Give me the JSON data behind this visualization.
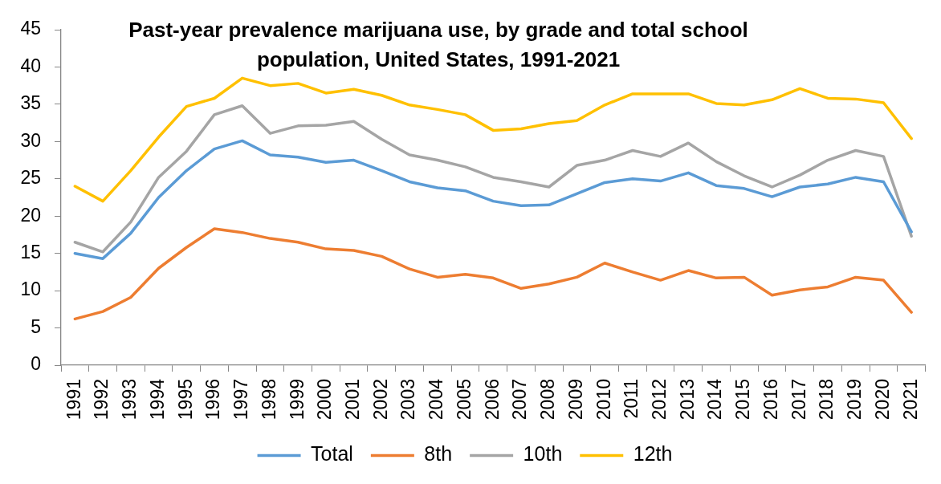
{
  "chart_data": {
    "type": "line",
    "title": "Past-year prevalence marijuana use, by grade and total school population, United States, 1991-2021",
    "categories": [
      "1991",
      "1992",
      "1993",
      "1994",
      "1995",
      "1996",
      "1997",
      "1998",
      "1999",
      "2000",
      "2001",
      "2002",
      "2003",
      "2004",
      "2005",
      "2006",
      "2007",
      "2008",
      "2009",
      "2010",
      "2011",
      "2012",
      "2013",
      "2014",
      "2015",
      "2016",
      "2017",
      "2018",
      "2019",
      "2020",
      "2021"
    ],
    "series": [
      {
        "name": "Total",
        "color": "#5b9bd5",
        "values": [
          15.0,
          14.3,
          17.7,
          22.5,
          26.1,
          29.0,
          30.1,
          28.2,
          27.9,
          27.2,
          27.5,
          26.1,
          24.6,
          23.8,
          23.4,
          22.0,
          21.4,
          21.5,
          23.0,
          24.5,
          25.0,
          24.7,
          25.8,
          24.1,
          23.7,
          22.6,
          23.9,
          24.3,
          25.2,
          24.6,
          17.9
        ]
      },
      {
        "name": "8th",
        "color": "#ed7d31",
        "values": [
          6.2,
          7.2,
          9.1,
          13.0,
          15.8,
          18.3,
          17.8,
          17.0,
          16.5,
          15.6,
          15.4,
          14.6,
          12.9,
          11.8,
          12.2,
          11.7,
          10.3,
          10.9,
          11.8,
          13.7,
          12.5,
          11.4,
          12.7,
          11.7,
          11.8,
          9.4,
          10.1,
          10.5,
          11.8,
          11.4,
          7.1
        ]
      },
      {
        "name": "10th",
        "color": "#a5a5a5",
        "values": [
          16.5,
          15.2,
          19.2,
          25.2,
          28.7,
          33.6,
          34.8,
          31.1,
          32.1,
          32.2,
          32.7,
          30.3,
          28.2,
          27.5,
          26.6,
          25.2,
          24.6,
          23.9,
          26.8,
          27.5,
          28.8,
          28.0,
          29.8,
          27.3,
          25.4,
          23.9,
          25.5,
          27.5,
          28.8,
          28.0,
          17.3
        ]
      },
      {
        "name": "12th",
        "color": "#ffc000",
        "values": [
          24.0,
          22.0,
          26.1,
          30.6,
          34.7,
          35.8,
          38.5,
          37.5,
          37.8,
          36.5,
          37.0,
          36.2,
          34.9,
          34.3,
          33.6,
          31.5,
          31.7,
          32.4,
          32.8,
          34.9,
          36.4,
          36.4,
          36.4,
          35.1,
          34.9,
          35.6,
          37.1,
          35.8,
          35.7,
          35.2,
          30.4
        ]
      }
    ],
    "ylim": [
      0,
      45
    ],
    "yticks": [
      0,
      5,
      10,
      15,
      20,
      25,
      30,
      35,
      40,
      45
    ],
    "grid": false,
    "legend": "bottom"
  }
}
